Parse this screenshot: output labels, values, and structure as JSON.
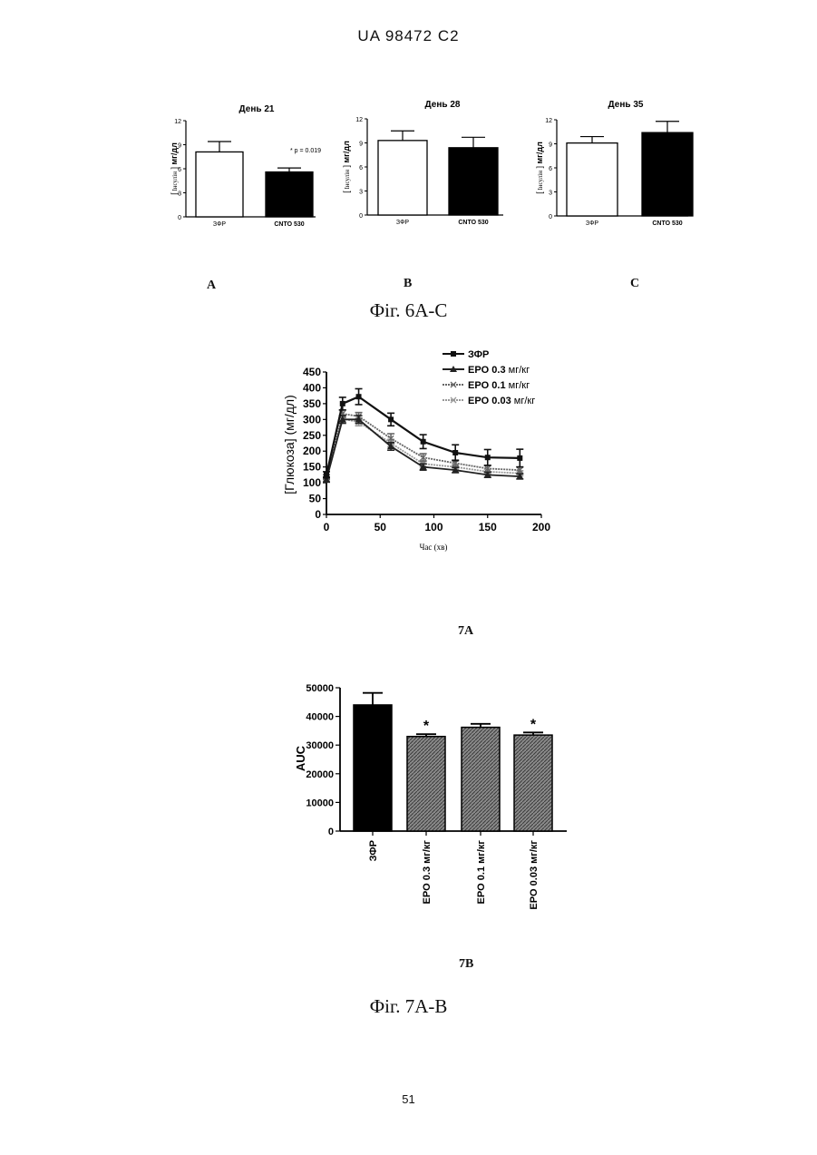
{
  "header": "UA   98472   C2",
  "figure6": {
    "panel_letters": [
      "A",
      "B",
      "C"
    ],
    "caption": "Фіг. 6А-С"
  },
  "figure7": {
    "panel_a_label": "7A",
    "panel_b_label": "7B",
    "caption": "Фіг. 7А-В"
  },
  "page_number": "51",
  "chart_data": [
    {
      "id": "fig6a",
      "type": "bar",
      "title": "День 21",
      "ylabel_parts": [
        "[",
        "Інсулін",
        "]",
        "мг/дл"
      ],
      "categories": [
        "ЗФР",
        "CNTO 530"
      ],
      "values": [
        8.1,
        5.6
      ],
      "errors": [
        1.3,
        0.5
      ],
      "bar_colors": [
        "#ffffff",
        "#000000"
      ],
      "ylim": [
        0,
        12
      ],
      "yticks": [
        0,
        3,
        6,
        9,
        12
      ],
      "annotation": "* p = 0.019"
    },
    {
      "id": "fig6b",
      "type": "bar",
      "title": "День 28",
      "ylabel_parts": [
        "[",
        "Інсулін",
        "]",
        "мг/дл"
      ],
      "categories": [
        "ЗФР",
        "CNTO 530"
      ],
      "values": [
        9.3,
        8.4
      ],
      "errors": [
        1.2,
        1.3
      ],
      "bar_colors": [
        "#ffffff",
        "#000000"
      ],
      "ylim": [
        0,
        12
      ],
      "yticks": [
        0,
        3,
        6,
        9,
        12
      ]
    },
    {
      "id": "fig6c",
      "type": "bar",
      "title": "День 35",
      "ylabel_parts": [
        "[",
        "Інсулін",
        "]",
        "мг/дл"
      ],
      "categories": [
        "ЗФР",
        "CNTO 530"
      ],
      "values": [
        9.1,
        10.4
      ],
      "errors": [
        0.8,
        1.4
      ],
      "bar_colors": [
        "#ffffff",
        "#000000"
      ],
      "ylim": [
        0,
        12
      ],
      "yticks": [
        0,
        3,
        6,
        9,
        12
      ]
    },
    {
      "id": "fig7a",
      "type": "line",
      "xlabel": "Час (хв)",
      "ylabel": "[Глюкоза] (мг/дл)",
      "xlim": [
        0,
        200
      ],
      "ylim": [
        0,
        450
      ],
      "xticks": [
        0,
        50,
        100,
        150,
        200
      ],
      "yticks": [
        0,
        50,
        100,
        150,
        200,
        250,
        300,
        350,
        400,
        450
      ],
      "x": [
        0,
        15,
        30,
        60,
        90,
        120,
        150,
        180
      ],
      "legend_position": "top-right",
      "series": [
        {
          "name": "ЗФР",
          "marker": "square",
          "color": "#111111",
          "values": [
            125,
            350,
            372,
            300,
            230,
            195,
            180,
            178
          ],
          "errors": [
            10,
            20,
            25,
            20,
            22,
            25,
            25,
            28
          ]
        },
        {
          "name": "EPO 0.3 мг/кг",
          "marker": "triangle",
          "color": "#222222",
          "values": [
            110,
            300,
            300,
            215,
            150,
            140,
            125,
            120
          ],
          "errors": [
            8,
            12,
            12,
            12,
            10,
            8,
            8,
            8
          ]
        },
        {
          "name": "EPO 0.1 мг/кг",
          "marker": "x",
          "color": "#666666",
          "values": [
            118,
            318,
            310,
            240,
            180,
            162,
            145,
            140
          ],
          "errors": [
            8,
            12,
            12,
            15,
            12,
            10,
            10,
            10
          ]
        },
        {
          "name": "EPO 0.03 мг/кг",
          "marker": "x",
          "color": "#999999",
          "values": [
            112,
            302,
            292,
            225,
            160,
            150,
            135,
            130
          ],
          "errors": [
            8,
            12,
            12,
            12,
            10,
            8,
            8,
            8
          ]
        }
      ]
    },
    {
      "id": "fig7b",
      "type": "bar",
      "ylabel": "AUC",
      "categories": [
        "ЗФР",
        "EPO 0.3 мг/кг",
        "EPO 0.1 мг/кг",
        "EPO 0.03 мг/кг"
      ],
      "values": [
        44000,
        33000,
        36200,
        33500
      ],
      "errors": [
        4200,
        800,
        1200,
        900
      ],
      "significance": [
        "",
        "*",
        "",
        "*"
      ],
      "bar_colors": [
        "#000000",
        "#555555",
        "#666666",
        "#555555"
      ],
      "ylim": [
        0,
        50000
      ],
      "yticks": [
        0,
        10000,
        20000,
        30000,
        40000,
        50000
      ]
    }
  ]
}
